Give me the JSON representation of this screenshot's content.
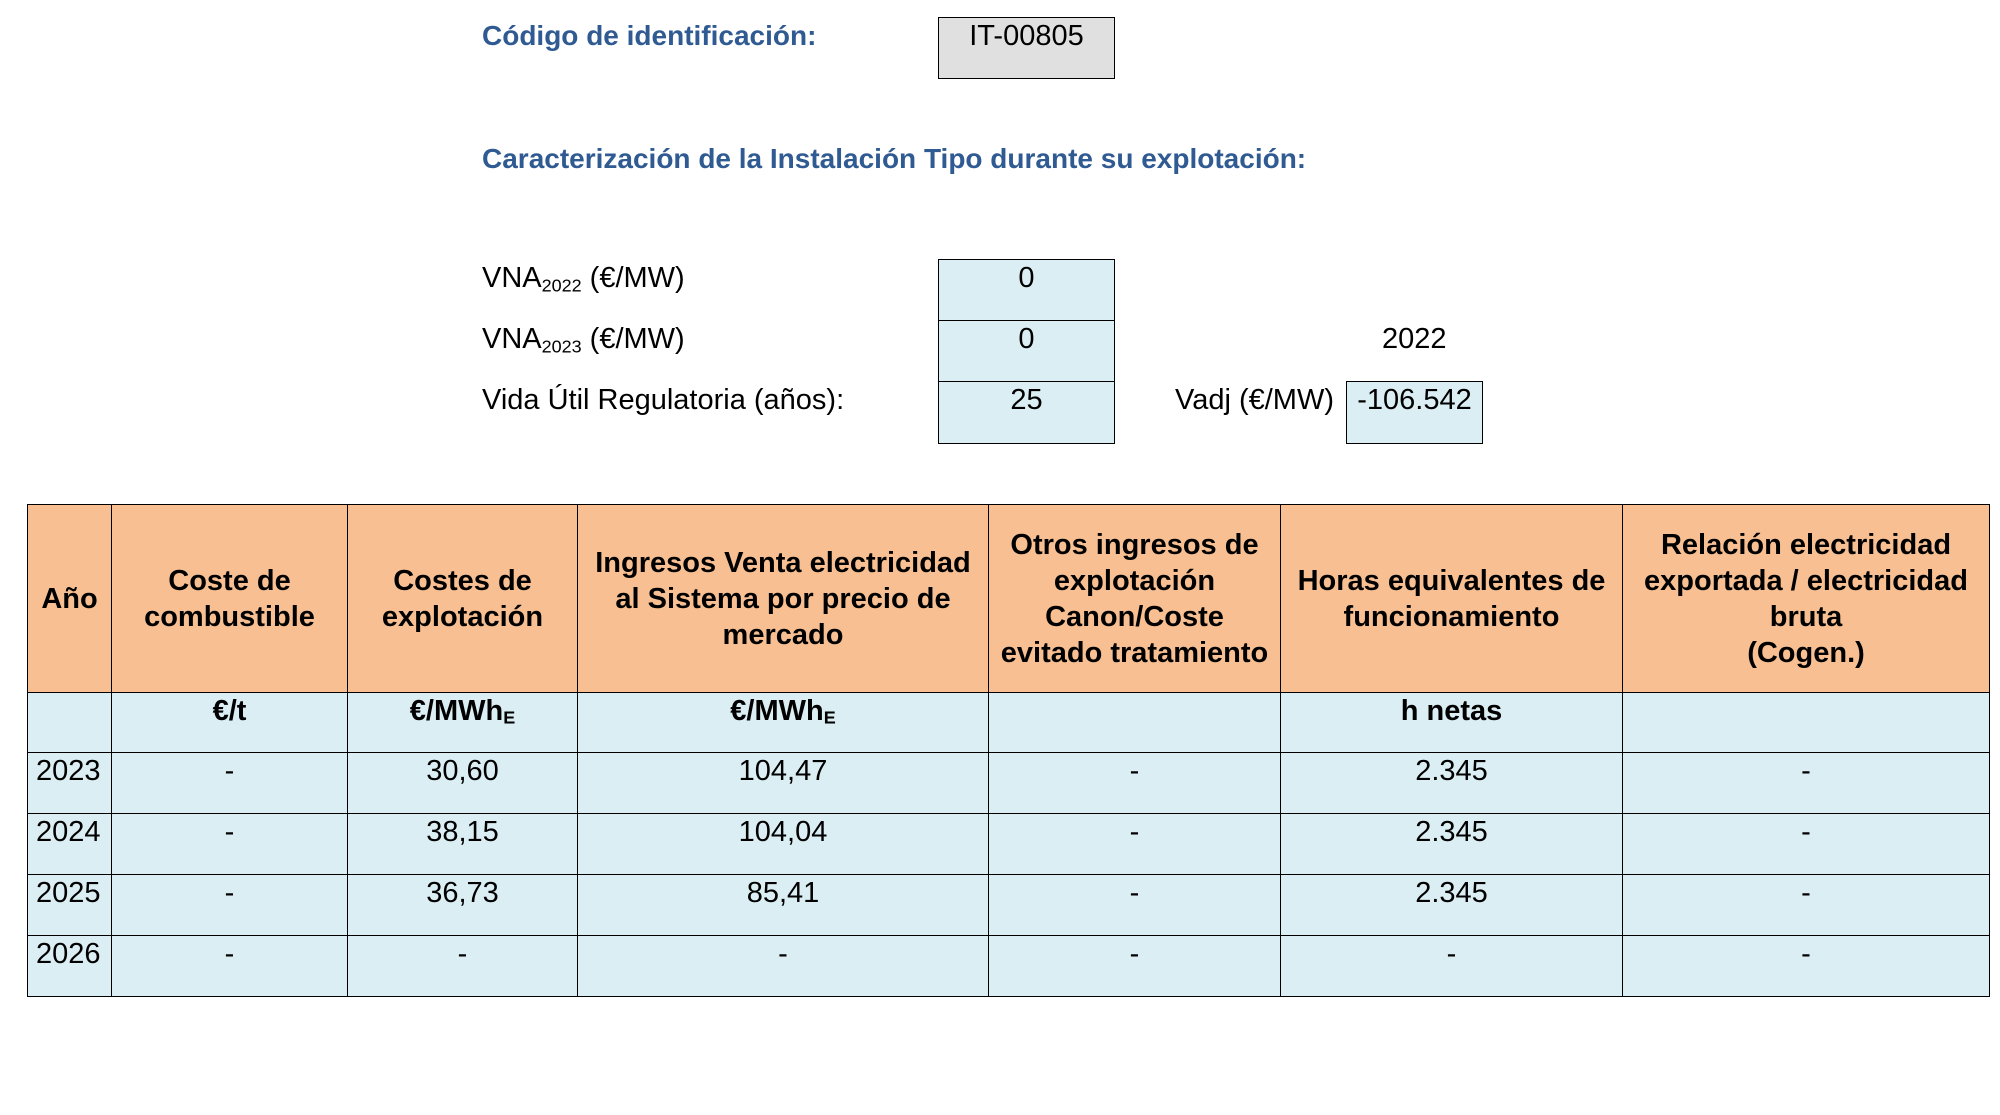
{
  "identification": {
    "label": "Código de identificación:",
    "code": "IT-00805"
  },
  "section_title": "Caracterización de la Instalación Tipo durante su explotación:",
  "params": {
    "vna2022": {
      "label_prefix": "VNA",
      "label_sub": "2022",
      "label_suffix": " (€/MW)",
      "value": "0"
    },
    "vna2023": {
      "label_prefix": "VNA",
      "label_sub": "2023",
      "label_suffix": " (€/MW)",
      "value": "0"
    },
    "vida_util": {
      "label": "Vida Útil Regulatoria (años):",
      "value": "25"
    },
    "year_label": "2022",
    "vadj": {
      "label": "Vadj (€/MW)",
      "value": "-106.542"
    }
  },
  "table": {
    "headers": [
      [
        "Año"
      ],
      [
        "Coste de",
        "combustible"
      ],
      [
        "Costes de",
        "explotación"
      ],
      [
        "Ingresos Venta electricidad",
        "al Sistema por precio de",
        "mercado"
      ],
      [
        "Otros ingresos de",
        "explotación",
        "Canon/Coste",
        "evitado tratamiento"
      ],
      [
        "Horas equivalentes de",
        "funcionamiento"
      ],
      [
        "Relación electricidad",
        "exportada / electricidad",
        "bruta",
        "(Cogen.)"
      ]
    ],
    "units": [
      {
        "main": "",
        "sub": ""
      },
      {
        "main": "€/t",
        "sub": ""
      },
      {
        "main": "€/MWh",
        "sub": "E"
      },
      {
        "main": "€/MWh",
        "sub": "E"
      },
      {
        "main": "",
        "sub": ""
      },
      {
        "main": "h netas",
        "sub": ""
      },
      {
        "main": "",
        "sub": ""
      }
    ],
    "rows": [
      [
        "2023",
        "-",
        "30,60",
        "104,47",
        "-",
        "2.345",
        "-"
      ],
      [
        "2024",
        "-",
        "38,15",
        "104,04",
        "-",
        "2.345",
        "-"
      ],
      [
        "2025",
        "-",
        "36,73",
        "85,41",
        "-",
        "2.345",
        "-"
      ],
      [
        "2026",
        "-",
        "-",
        "-",
        "-",
        "-",
        "-"
      ]
    ]
  }
}
